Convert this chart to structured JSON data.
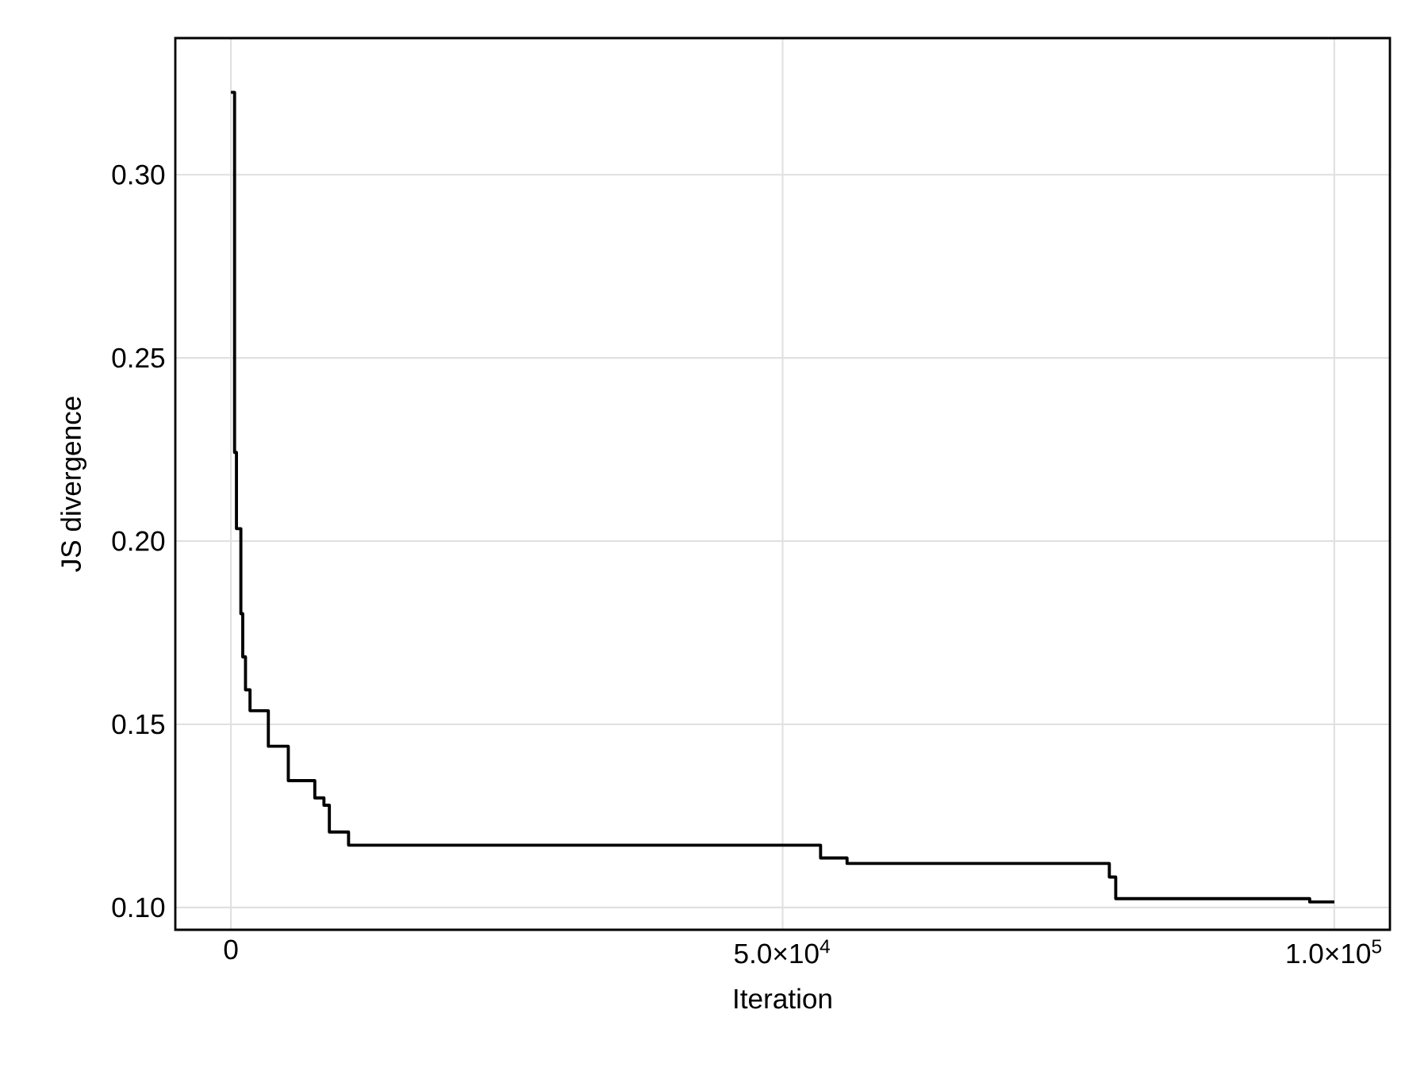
{
  "chart_data": {
    "type": "step",
    "xlabel": "Iteration",
    "ylabel": "JS divergence",
    "x": [
      0,
      330,
      500,
      900,
      1070,
      1320,
      1730,
      3390,
      5200,
      7600,
      8430,
      8920,
      10660,
      53440,
      55840,
      79610,
      80190,
      97770,
      100000
    ],
    "values": [
      0.3225,
      0.2242,
      0.2034,
      0.1802,
      0.1684,
      0.1594,
      0.1537,
      0.144,
      0.1346,
      0.1299,
      0.1279,
      0.1206,
      0.117,
      0.1135,
      0.112,
      0.1083,
      0.1024,
      0.1015,
      0.1015
    ],
    "color": "#000000",
    "xlim": [
      -5040,
      105040
    ],
    "ylim": [
      0.0939,
      0.3373
    ],
    "xticks": [
      0,
      {
        "value": 50000,
        "label": "5.0×10$^{4}$"
      },
      {
        "value": 100000,
        "label": "1.0×10$^{5}$"
      }
    ],
    "yticks": [
      {
        "value": 0.1,
        "label": "0.10"
      },
      {
        "value": 0.15,
        "label": "0.15"
      },
      {
        "value": 0.2,
        "label": "0.20"
      },
      {
        "value": 0.25,
        "label": "0.25"
      },
      {
        "value": 0.3,
        "label": "0.30"
      }
    ],
    "grid": true
  }
}
